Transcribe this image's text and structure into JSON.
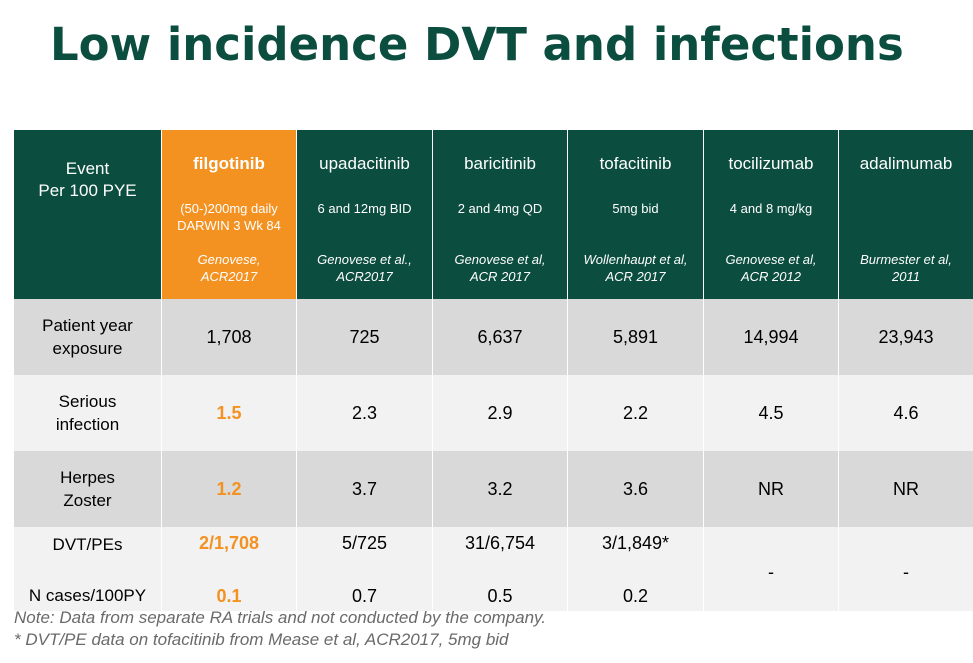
{
  "title": "Low incidence DVT and infections",
  "header": {
    "event_label": "Event",
    "event_sub": "Per 100 PYE",
    "drugs": [
      {
        "name": "filgotinib",
        "dose_line1": "(50-)200mg daily",
        "dose_line2": "DARWIN 3 Wk 84",
        "ref_line1": "Genovese,",
        "ref_line2": "ACR2017"
      },
      {
        "name": "upadacitinib",
        "dose_line1": "6 and 12mg BID",
        "dose_line2": "",
        "ref_line1": "Genovese et al.,",
        "ref_line2": "ACR2017"
      },
      {
        "name": "baricitinib",
        "dose_line1": "2 and 4mg QD",
        "dose_line2": "",
        "ref_line1": "Genovese et al,",
        "ref_line2": "ACR 2017"
      },
      {
        "name": "tofacitinib",
        "dose_line1": "5mg bid",
        "dose_line2": "",
        "ref_line1": "Wollenhaupt  et al,",
        "ref_line2": "ACR 2017"
      },
      {
        "name": "tocilizumab",
        "dose_line1": "4 and 8 mg/kg",
        "dose_line2": "",
        "ref_line1": "Genovese et al,",
        "ref_line2": "ACR 2012"
      },
      {
        "name": "adalimumab",
        "dose_line1": "",
        "dose_line2": "",
        "ref_line1": "Burmester et al,",
        "ref_line2": "2011"
      }
    ]
  },
  "rows": {
    "pye": {
      "label1": "Patient year",
      "label2": "exposure",
      "values": [
        "1,708",
        "725",
        "6,637",
        "5,891",
        "14,994",
        "23,943"
      ]
    },
    "serious": {
      "label1": "Serious",
      "label2": "infection",
      "values": [
        "1.5",
        "2.3",
        "2.9",
        "2.2",
        "4.5",
        "4.6"
      ]
    },
    "herpes": {
      "label1": "Herpes",
      "label2": "Zoster",
      "values": [
        "1.2",
        "3.7",
        "3.2",
        "3.6",
        "NR",
        "NR"
      ]
    },
    "dvt": {
      "label": "DVT/PEs",
      "values": [
        "2/1,708",
        "5/725",
        "31/6,754",
        "3/1,849*"
      ]
    },
    "ncases": {
      "label": "N cases/100PY",
      "values": [
        "0.1",
        "0.7",
        "0.5",
        "0.2"
      ]
    },
    "dvt_merged": [
      "-",
      "-"
    ]
  },
  "notes": {
    "line1": "Note: Data from separate RA trials and not conducted by the company.",
    "line2": "* DVT/PE data on tofacitinib from Mease et al, ACR2017, 5mg bid"
  },
  "colors": {
    "dark_green": "#0b4d3f",
    "orange": "#f39121",
    "gray_row": "#d9d9d9",
    "light_row": "#f2f2f2"
  }
}
